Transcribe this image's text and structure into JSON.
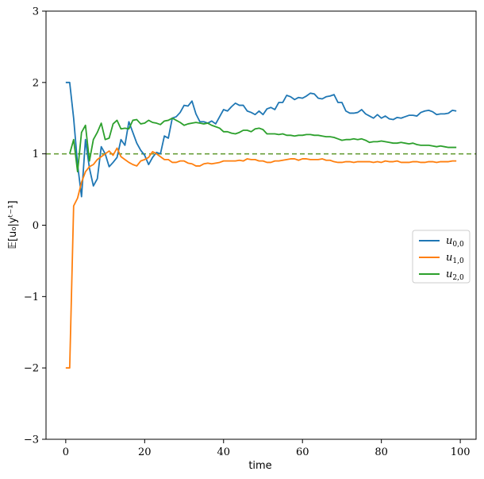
{
  "chart_data": {
    "type": "line",
    "xlabel": "time",
    "ylabel": "𝔼[u₀|yᵗ⁻¹]",
    "xlim": [
      -5,
      104
    ],
    "ylim": [
      -3,
      3
    ],
    "x_ticks": [
      0,
      20,
      40,
      60,
      80,
      100
    ],
    "y_ticks": [
      3,
      2,
      1,
      0,
      -1,
      -2,
      -3
    ],
    "x_tick_labels": [
      "0",
      "20",
      "40",
      "60",
      "80",
      "100"
    ],
    "y_tick_labels": [
      "3",
      "2",
      "1",
      "0",
      "−1",
      "−2",
      "−3"
    ],
    "reference_line": {
      "y": 1.0,
      "style": "dashed",
      "color": "#6a9f3a"
    },
    "legend_position": "center-right",
    "series": [
      {
        "name": "u0,0",
        "name_base": "u",
        "name_sub": "0,0",
        "color": "#1f77b4",
        "x": [
          0,
          1,
          2,
          3,
          4,
          5,
          6,
          7,
          8,
          9,
          10,
          11,
          12,
          13,
          14,
          15,
          16,
          17,
          18,
          19,
          20,
          21,
          22,
          23,
          24,
          25,
          26,
          27,
          28,
          29,
          30,
          31,
          32,
          33,
          34,
          35,
          36,
          37,
          38,
          39,
          40,
          41,
          42,
          43,
          44,
          45,
          46,
          47,
          48,
          49,
          50,
          51,
          52,
          53,
          54,
          55,
          56,
          57,
          58,
          59,
          60,
          61,
          62,
          63,
          64,
          65,
          66,
          67,
          68,
          69,
          70,
          71,
          72,
          73,
          74,
          75,
          76,
          77,
          78,
          79,
          80,
          81,
          82,
          83,
          84,
          85,
          86,
          87,
          88,
          89,
          90,
          91,
          92,
          93,
          94,
          95,
          96,
          97,
          98,
          99
        ],
        "y": [
          2.0,
          2.0,
          1.5,
          0.85,
          0.4,
          1.2,
          0.8,
          0.55,
          0.65,
          1.1,
          1.0,
          0.82,
          0.88,
          0.95,
          1.2,
          1.12,
          1.45,
          1.3,
          1.15,
          1.05,
          0.98,
          0.85,
          0.95,
          1.02,
          1.0,
          1.25,
          1.22,
          1.5,
          1.52,
          1.58,
          1.68,
          1.67,
          1.74,
          1.56,
          1.45,
          1.45,
          1.43,
          1.46,
          1.42,
          1.52,
          1.62,
          1.6,
          1.66,
          1.71,
          1.68,
          1.68,
          1.6,
          1.58,
          1.55,
          1.6,
          1.55,
          1.63,
          1.65,
          1.62,
          1.72,
          1.72,
          1.82,
          1.8,
          1.76,
          1.79,
          1.78,
          1.81,
          1.85,
          1.84,
          1.78,
          1.77,
          1.8,
          1.81,
          1.83,
          1.72,
          1.72,
          1.6,
          1.57,
          1.57,
          1.58,
          1.62,
          1.56,
          1.53,
          1.5,
          1.55,
          1.5,
          1.53,
          1.49,
          1.48,
          1.51,
          1.5,
          1.52,
          1.54,
          1.54,
          1.53,
          1.58,
          1.6,
          1.61,
          1.59,
          1.55,
          1.56,
          1.56,
          1.57,
          1.61,
          1.6
        ]
      },
      {
        "name": "u1,0",
        "name_base": "u",
        "name_sub": "1,0",
        "color": "#ff7f0e",
        "x": [
          0,
          1,
          2,
          3,
          4,
          5,
          6,
          7,
          8,
          9,
          10,
          11,
          12,
          13,
          14,
          15,
          16,
          17,
          18,
          19,
          20,
          21,
          22,
          23,
          24,
          25,
          26,
          27,
          28,
          29,
          30,
          31,
          32,
          33,
          34,
          35,
          36,
          37,
          38,
          39,
          40,
          41,
          42,
          43,
          44,
          45,
          46,
          47,
          48,
          49,
          50,
          51,
          52,
          53,
          54,
          55,
          56,
          57,
          58,
          59,
          60,
          61,
          62,
          63,
          64,
          65,
          66,
          67,
          68,
          69,
          70,
          71,
          72,
          73,
          74,
          75,
          76,
          77,
          78,
          79,
          80,
          81,
          82,
          83,
          84,
          85,
          86,
          87,
          88,
          89,
          90,
          91,
          92,
          93,
          94,
          95,
          96,
          97,
          98,
          99
        ],
        "y": [
          -2.0,
          -2.0,
          0.27,
          0.38,
          0.6,
          0.75,
          0.82,
          0.85,
          0.92,
          0.96,
          1.0,
          1.04,
          0.98,
          1.08,
          0.96,
          0.92,
          0.88,
          0.85,
          0.83,
          0.9,
          0.92,
          0.95,
          1.03,
          1.0,
          0.96,
          0.92,
          0.92,
          0.88,
          0.88,
          0.9,
          0.9,
          0.87,
          0.86,
          0.83,
          0.83,
          0.86,
          0.87,
          0.86,
          0.87,
          0.88,
          0.9,
          0.9,
          0.9,
          0.9,
          0.91,
          0.9,
          0.93,
          0.92,
          0.92,
          0.9,
          0.9,
          0.88,
          0.88,
          0.9,
          0.9,
          0.91,
          0.92,
          0.93,
          0.93,
          0.91,
          0.93,
          0.93,
          0.92,
          0.92,
          0.92,
          0.93,
          0.91,
          0.91,
          0.89,
          0.88,
          0.88,
          0.89,
          0.89,
          0.88,
          0.89,
          0.89,
          0.89,
          0.89,
          0.88,
          0.89,
          0.88,
          0.9,
          0.89,
          0.89,
          0.9,
          0.88,
          0.88,
          0.88,
          0.89,
          0.89,
          0.88,
          0.88,
          0.89,
          0.89,
          0.88,
          0.89,
          0.89,
          0.89,
          0.9,
          0.9
        ]
      },
      {
        "name": "u2,0",
        "name_base": "u",
        "name_sub": "2,0",
        "color": "#2ca02c",
        "x": [
          0,
          1,
          2,
          3,
          4,
          5,
          6,
          7,
          8,
          9,
          10,
          11,
          12,
          13,
          14,
          15,
          16,
          17,
          18,
          19,
          20,
          21,
          22,
          23,
          24,
          25,
          26,
          27,
          28,
          29,
          30,
          31,
          32,
          33,
          34,
          35,
          36,
          37,
          38,
          39,
          40,
          41,
          42,
          43,
          44,
          45,
          46,
          47,
          48,
          49,
          50,
          51,
          52,
          53,
          54,
          55,
          56,
          57,
          58,
          59,
          60,
          61,
          62,
          63,
          64,
          65,
          66,
          67,
          68,
          69,
          70,
          71,
          72,
          73,
          74,
          75,
          76,
          77,
          78,
          79,
          80,
          81,
          82,
          83,
          84,
          85,
          86,
          87,
          88,
          89,
          90,
          91,
          92,
          93,
          94,
          95,
          96,
          97,
          98,
          99
        ],
        "y": [
          null,
          1.0,
          1.2,
          0.75,
          1.3,
          1.4,
          0.9,
          1.2,
          1.3,
          1.43,
          1.2,
          1.22,
          1.42,
          1.47,
          1.35,
          1.36,
          1.35,
          1.47,
          1.48,
          1.42,
          1.43,
          1.47,
          1.44,
          1.43,
          1.41,
          1.46,
          1.47,
          1.5,
          1.47,
          1.44,
          1.4,
          1.42,
          1.43,
          1.44,
          1.43,
          1.42,
          1.43,
          1.4,
          1.38,
          1.36,
          1.31,
          1.31,
          1.29,
          1.28,
          1.3,
          1.33,
          1.33,
          1.31,
          1.35,
          1.36,
          1.34,
          1.28,
          1.28,
          1.28,
          1.27,
          1.28,
          1.26,
          1.26,
          1.25,
          1.26,
          1.26,
          1.27,
          1.27,
          1.26,
          1.26,
          1.25,
          1.24,
          1.24,
          1.23,
          1.21,
          1.19,
          1.2,
          1.2,
          1.21,
          1.2,
          1.21,
          1.19,
          1.16,
          1.17,
          1.17,
          1.18,
          1.17,
          1.16,
          1.15,
          1.15,
          1.16,
          1.15,
          1.14,
          1.15,
          1.13,
          1.12,
          1.12,
          1.12,
          1.11,
          1.1,
          1.11,
          1.1,
          1.09,
          1.09,
          1.09
        ]
      }
    ]
  }
}
